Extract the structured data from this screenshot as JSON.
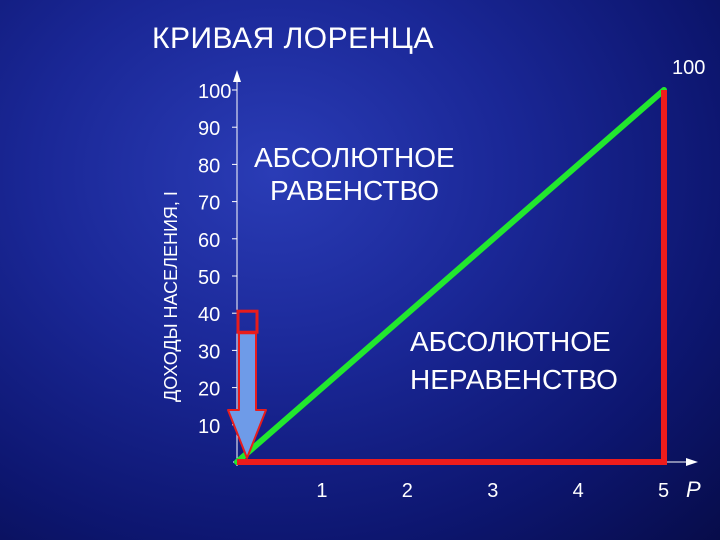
{
  "title": "КРИВАЯ ЛОРЕНЦА",
  "colors": {
    "equality_line": "#22e82e",
    "inequality_line": "#ee1c1c",
    "axes": "#ffffff",
    "arrow_fill": "#6e9be8",
    "arrow_stroke": "#e81c1c",
    "arrow_box": "#e81c1c"
  },
  "chart_data": {
    "type": "line",
    "ylabel": "ДОХОДЫ НАСЕЛЕНИЯ, I",
    "xlabel": "P",
    "x_ticks": [
      "1",
      "2",
      "3",
      "4",
      "5"
    ],
    "y_ticks": [
      "10",
      "20",
      "30",
      "40",
      "50",
      "60",
      "70",
      "80",
      "90",
      "100"
    ],
    "corner_label": "100",
    "xlim": [
      0,
      5
    ],
    "ylim": [
      0,
      100
    ],
    "series": [
      {
        "name": "АБСОЛЮТНОЕ РАВЕНСТВО",
        "x": [
          0,
          5
        ],
        "y": [
          0,
          100
        ]
      },
      {
        "name": "АБСОЛЮТНОЕ НЕРАВЕНСТВО",
        "x": [
          0,
          5,
          5
        ],
        "y": [
          0,
          0,
          100
        ]
      }
    ],
    "annotations": [
      {
        "lines": [
          "АБСОЛЮТНОЕ",
          "РАВЕНСТВО"
        ]
      },
      {
        "lines": [
          "АБСОЛЮТНОЕ",
          "НЕРАВЕНСТВО"
        ]
      }
    ],
    "arrow": {
      "from": 40,
      "to": 0
    }
  }
}
